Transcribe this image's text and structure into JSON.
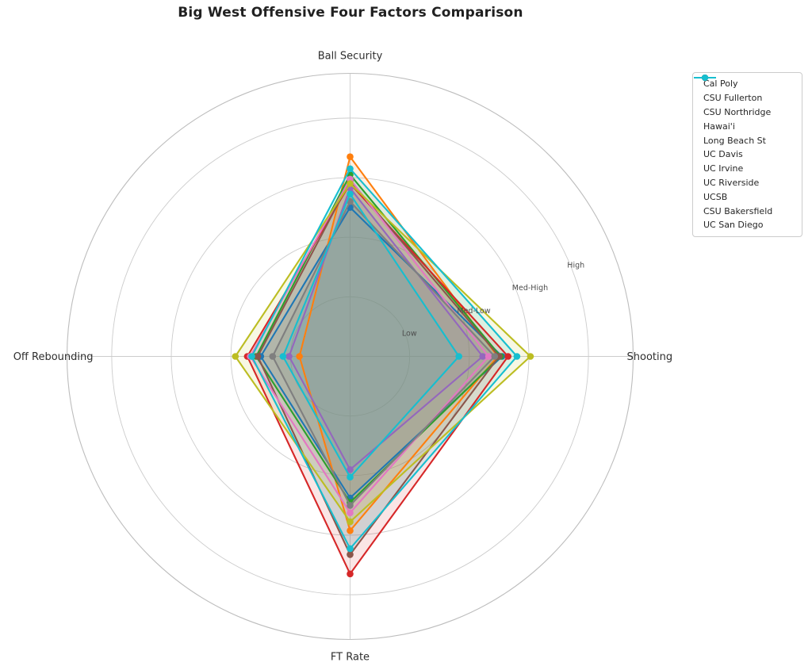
{
  "title": "Big West Offensive Four Factors Comparison",
  "chart_data": {
    "type": "radar",
    "title": "Big West Offensive Four Factors Comparison",
    "categories": [
      "Ball Security",
      "Shooting",
      "FT Rate",
      "Off Rebounding"
    ],
    "r_tick_labels": [
      "Low",
      "Med-Low",
      "Med-High",
      "High"
    ],
    "r_tick_values": [
      0.2,
      0.4,
      0.6,
      0.8
    ],
    "rlim": [
      0,
      0.95
    ],
    "grid": true,
    "grid_color": "#cccccc",
    "outer_ring_color": "#bdbdbd",
    "legend_position": "upper right",
    "fill_alpha": 0.12,
    "series": [
      {
        "name": "Cal Poly",
        "color": "#1f77b4",
        "values": [
          0.5,
          0.51,
          0.475,
          0.3
        ]
      },
      {
        "name": "CSU Fullerton",
        "color": "#ff7f0e",
        "values": [
          0.67,
          0.495,
          0.585,
          0.17
        ]
      },
      {
        "name": "CSU Northridge",
        "color": "#2ca02c",
        "values": [
          0.61,
          0.505,
          0.49,
          0.315
        ]
      },
      {
        "name": "Hawai'i",
        "color": "#d62728",
        "values": [
          0.58,
          0.53,
          0.73,
          0.345
        ]
      },
      {
        "name": "Long Beach St",
        "color": "#9467bd",
        "values": [
          0.565,
          0.445,
          0.38,
          0.205
        ]
      },
      {
        "name": "UC Davis",
        "color": "#8c564b",
        "values": [
          0.59,
          0.5,
          0.665,
          0.31
        ]
      },
      {
        "name": "UC Irvine",
        "color": "#e377c2",
        "values": [
          0.595,
          0.465,
          0.525,
          0.335
        ]
      },
      {
        "name": "UC Riverside",
        "color": "#7f7f7f",
        "values": [
          0.52,
          0.485,
          0.5,
          0.26
        ]
      },
      {
        "name": "UCSB",
        "color": "#bcbd22",
        "values": [
          0.58,
          0.605,
          0.555,
          0.385
        ]
      },
      {
        "name": "CSU Bakersfield",
        "color": "#17becf",
        "values": [
          0.63,
          0.56,
          0.645,
          0.33
        ]
      },
      {
        "name": "UC San Diego",
        "color": "#17becf",
        "values": [
          0.545,
          0.365,
          0.405,
          0.225
        ]
      }
    ]
  }
}
